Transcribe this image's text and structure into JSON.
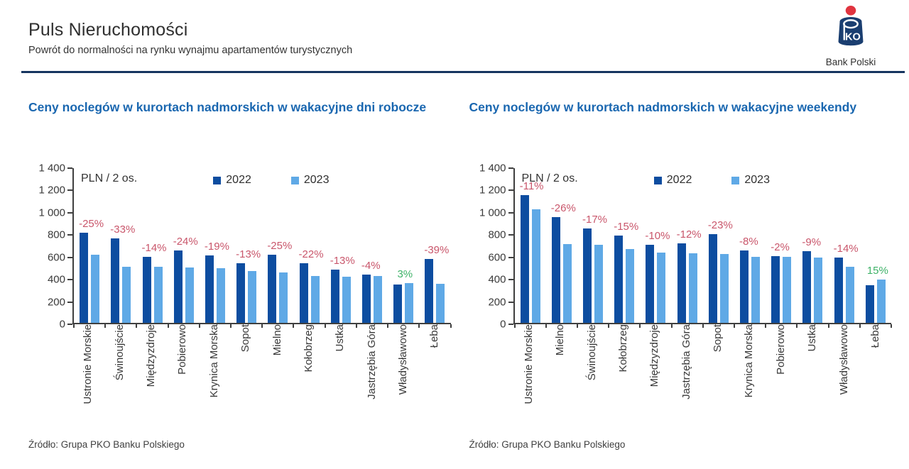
{
  "header": {
    "title": "Puls Nieruchomości",
    "subtitle": "Powrót do normalności na rynku wynajmu apartamentów turystycznych",
    "logo": {
      "bank_name": "Bank Polski",
      "icon": "pko-bank-polski-logo"
    }
  },
  "colors": {
    "bar_2022_navy": "#0d4da0",
    "bar_2023_light_blue": "#5fa9e6",
    "title_blue": "#1a67b0",
    "negative_change_red": "#c9566b",
    "positive_change_green": "#3eb268",
    "header_rule_navy": "#16355f",
    "axis_gray": "#3f3f3f",
    "logo_red": "#e0343f",
    "logo_navy": "#1a3e70"
  },
  "chart_data": [
    {
      "id": "weekdays",
      "type": "bar",
      "title": "Ceny noclegów w kurortach nadmorskich w wakacyjne dni robocze",
      "unit_label": "PLN / 2 os.",
      "legend": [
        "2022",
        "2023"
      ],
      "legend_position": "top",
      "grid": false,
      "ylim": [
        0,
        1400
      ],
      "y_tick_labels": [
        "0",
        "200",
        "400",
        "600",
        "800",
        "1 000",
        "1 200",
        "1 400"
      ],
      "categories": [
        "Ustronie Morskie",
        "Świnoujście",
        "Międzyzdroje",
        "Pobierowo",
        "Krynica Morska",
        "Sopot",
        "Mielno",
        "Kołobrzeg",
        "Ustka",
        "Jastrzębia Góra",
        "Władysławowo",
        "Łeba"
      ],
      "series": [
        {
          "name": "2022",
          "values": [
            810,
            755,
            590,
            650,
            605,
            535,
            610,
            535,
            480,
            435,
            345,
            570
          ]
        },
        {
          "name": "2023",
          "values": [
            610,
            505,
            505,
            495,
            490,
            465,
            455,
            420,
            415,
            420,
            355,
            350
          ]
        }
      ],
      "change_labels": [
        "-25%",
        "-33%",
        "-14%",
        "-24%",
        "-19%",
        "-13%",
        "-25%",
        "-22%",
        "-13%",
        "-4%",
        "3%",
        "-39%"
      ],
      "source": "Źródło: Grupa PKO Banku Polskiego"
    },
    {
      "id": "weekends",
      "type": "bar",
      "title": "Ceny noclegów w kurortach nadmorskich w wakacyjne weekendy",
      "unit_label": "PLN / 2 os.",
      "legend": [
        "2022",
        "2023"
      ],
      "legend_position": "top",
      "grid": false,
      "ylim": [
        0,
        1400
      ],
      "y_tick_labels": [
        "0",
        "200",
        "400",
        "600",
        "800",
        "1 000",
        "1 200",
        "1 400"
      ],
      "categories": [
        "Ustronie Morskie",
        "Mielno",
        "Świnoujście",
        "Kołobrzeg",
        "Międzyzdroje",
        "Jastrzębia Góra",
        "Sopot",
        "Krynica Morska",
        "Pobierowo",
        "Ustka",
        "Władysławowo",
        "Łeba"
      ],
      "series": [
        {
          "name": "2022",
          "values": [
            1145,
            950,
            845,
            785,
            700,
            715,
            795,
            650,
            600,
            640,
            585,
            335
          ]
        },
        {
          "name": "2023",
          "values": [
            1020,
            705,
            700,
            665,
            630,
            625,
            615,
            595,
            590,
            585,
            505,
            390
          ]
        }
      ],
      "change_labels": [
        "-11%",
        "-26%",
        "-17%",
        "-15%",
        "-10%",
        "-12%",
        "-23%",
        "-8%",
        "-2%",
        "-9%",
        "-14%",
        "15%"
      ],
      "source": "Źródło: Grupa PKO Banku Polskiego"
    }
  ]
}
